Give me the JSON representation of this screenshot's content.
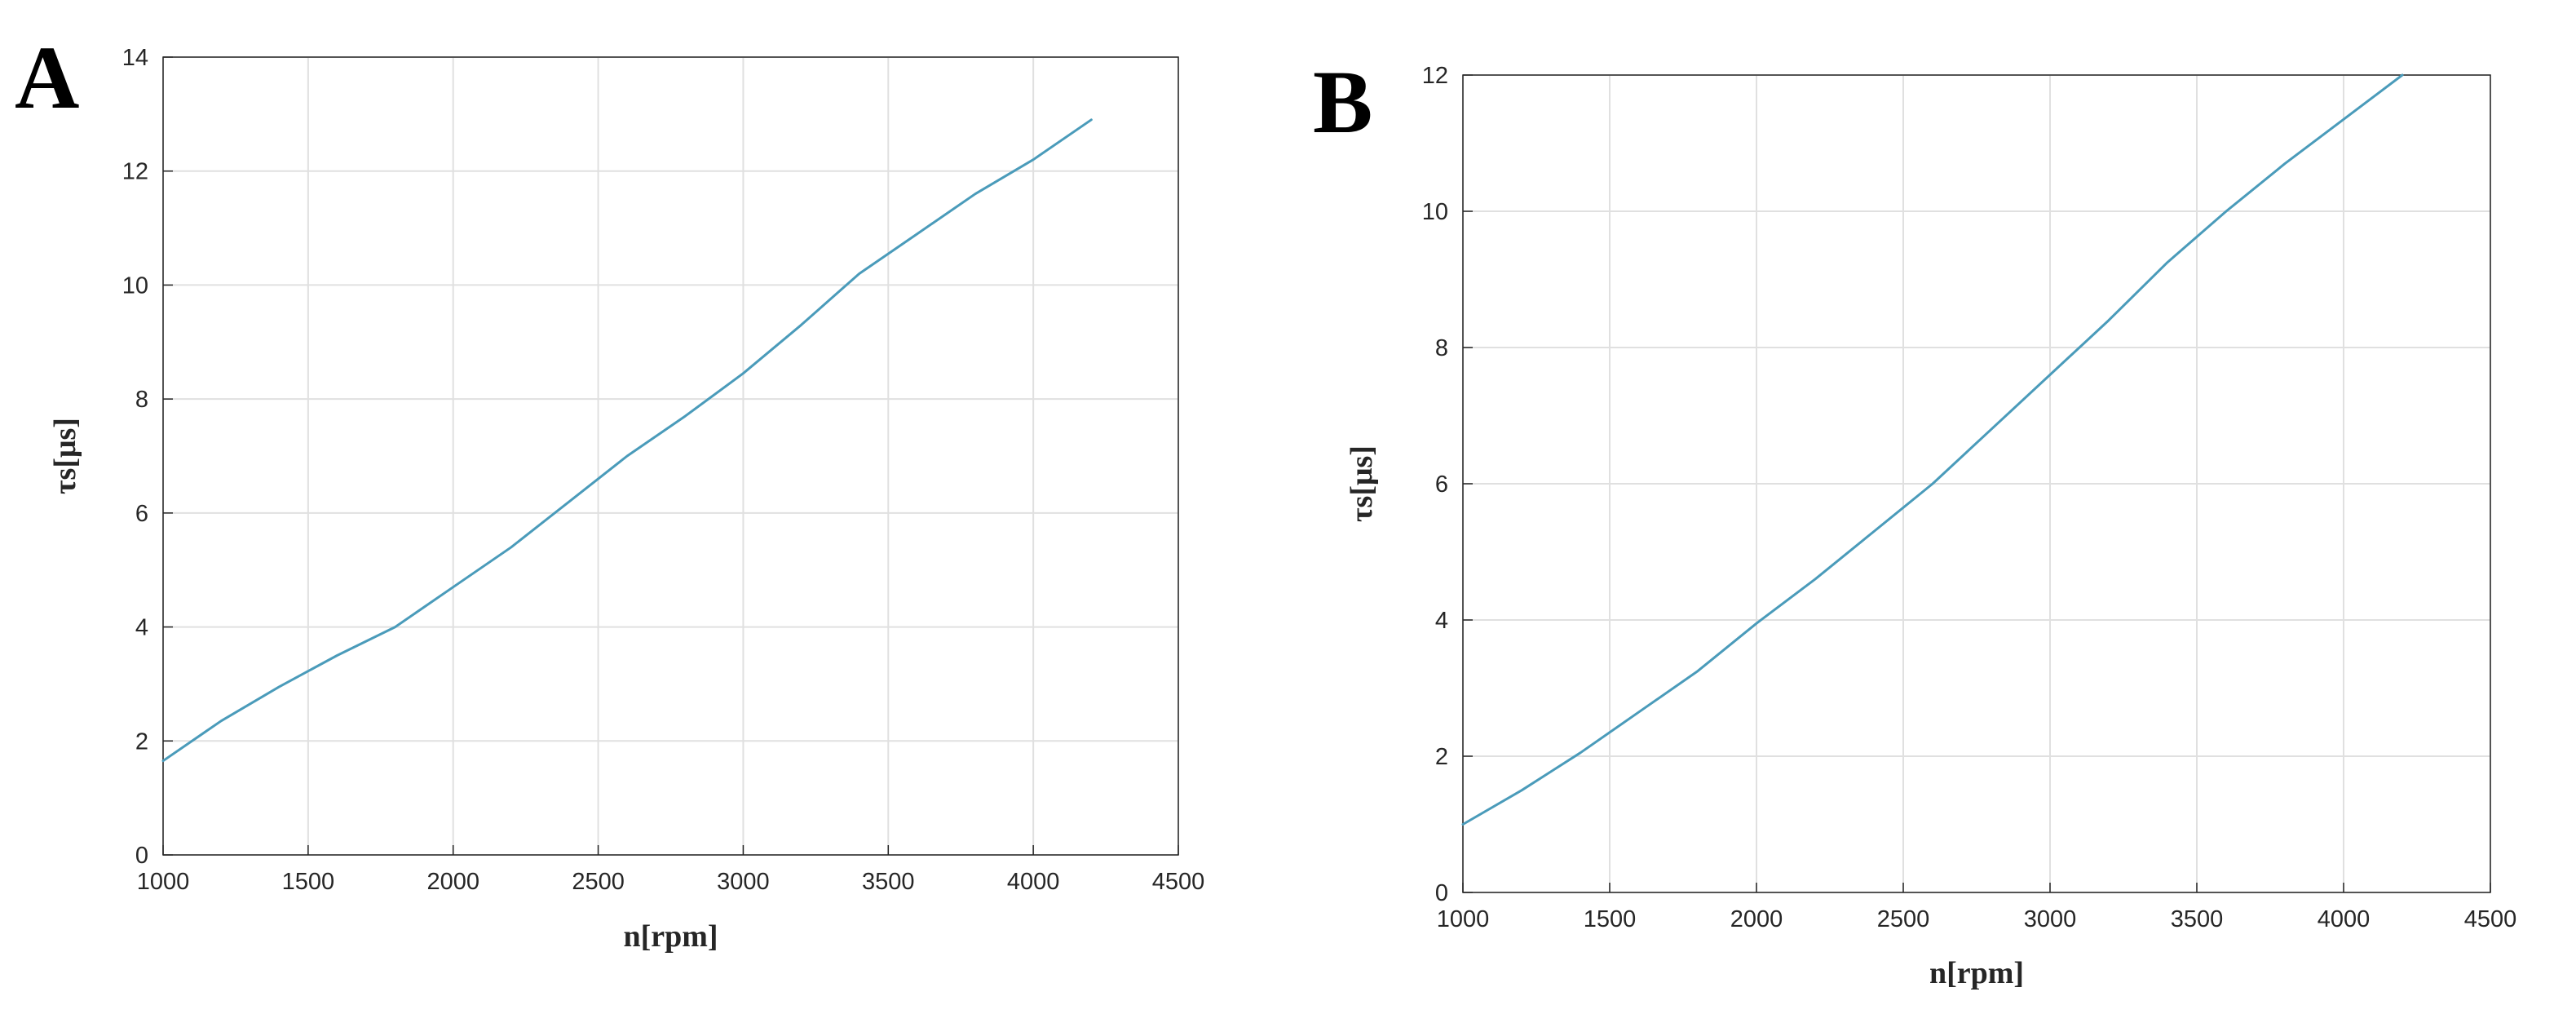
{
  "chart_data": [
    {
      "type": "line",
      "panel_label": "A",
      "xlabel": "n[rpm]",
      "ylabel": "τs[μs]",
      "xlim": [
        1000,
        4500
      ],
      "ylim": [
        0,
        14
      ],
      "xticks": [
        "1000",
        "1500",
        "2000",
        "2500",
        "3000",
        "3500",
        "4000",
        "4500"
      ],
      "yticks": [
        "0",
        "2",
        "4",
        "6",
        "8",
        "10",
        "12",
        "14"
      ],
      "grid": true,
      "series": [
        {
          "color": "#4a9bba",
          "x": [
            1000,
            1200,
            1400,
            1600,
            1800,
            2000,
            2200,
            2400,
            2600,
            2800,
            3000,
            3200,
            3400,
            3600,
            3800,
            4000,
            4200
          ],
          "y": [
            1.65,
            2.35,
            2.95,
            3.5,
            4.0,
            4.7,
            5.4,
            6.2,
            7.0,
            7.7,
            8.45,
            9.3,
            10.2,
            10.9,
            11.6,
            12.2,
            12.9
          ]
        }
      ]
    },
    {
      "type": "line",
      "panel_label": "B",
      "xlabel": "n[rpm]",
      "ylabel": "τs[μs]",
      "xlim": [
        1000,
        4500
      ],
      "ylim": [
        0,
        12
      ],
      "xticks": [
        "1000",
        "1500",
        "2000",
        "2500",
        "3000",
        "3500",
        "4000",
        "4500"
      ],
      "yticks": [
        "0",
        "2",
        "4",
        "6",
        "8",
        "10",
        "12"
      ],
      "grid": true,
      "series": [
        {
          "color": "#4a9bba",
          "x": [
            1000,
            1200,
            1400,
            1600,
            1800,
            2000,
            2200,
            2400,
            2600,
            2800,
            3000,
            3200,
            3400,
            3600,
            3800,
            4000,
            4200
          ],
          "y": [
            1.0,
            1.5,
            2.05,
            2.65,
            3.25,
            3.95,
            4.6,
            5.3,
            6.0,
            6.8,
            7.6,
            8.4,
            9.25,
            10.0,
            10.7,
            11.35,
            12.0
          ]
        }
      ]
    }
  ]
}
